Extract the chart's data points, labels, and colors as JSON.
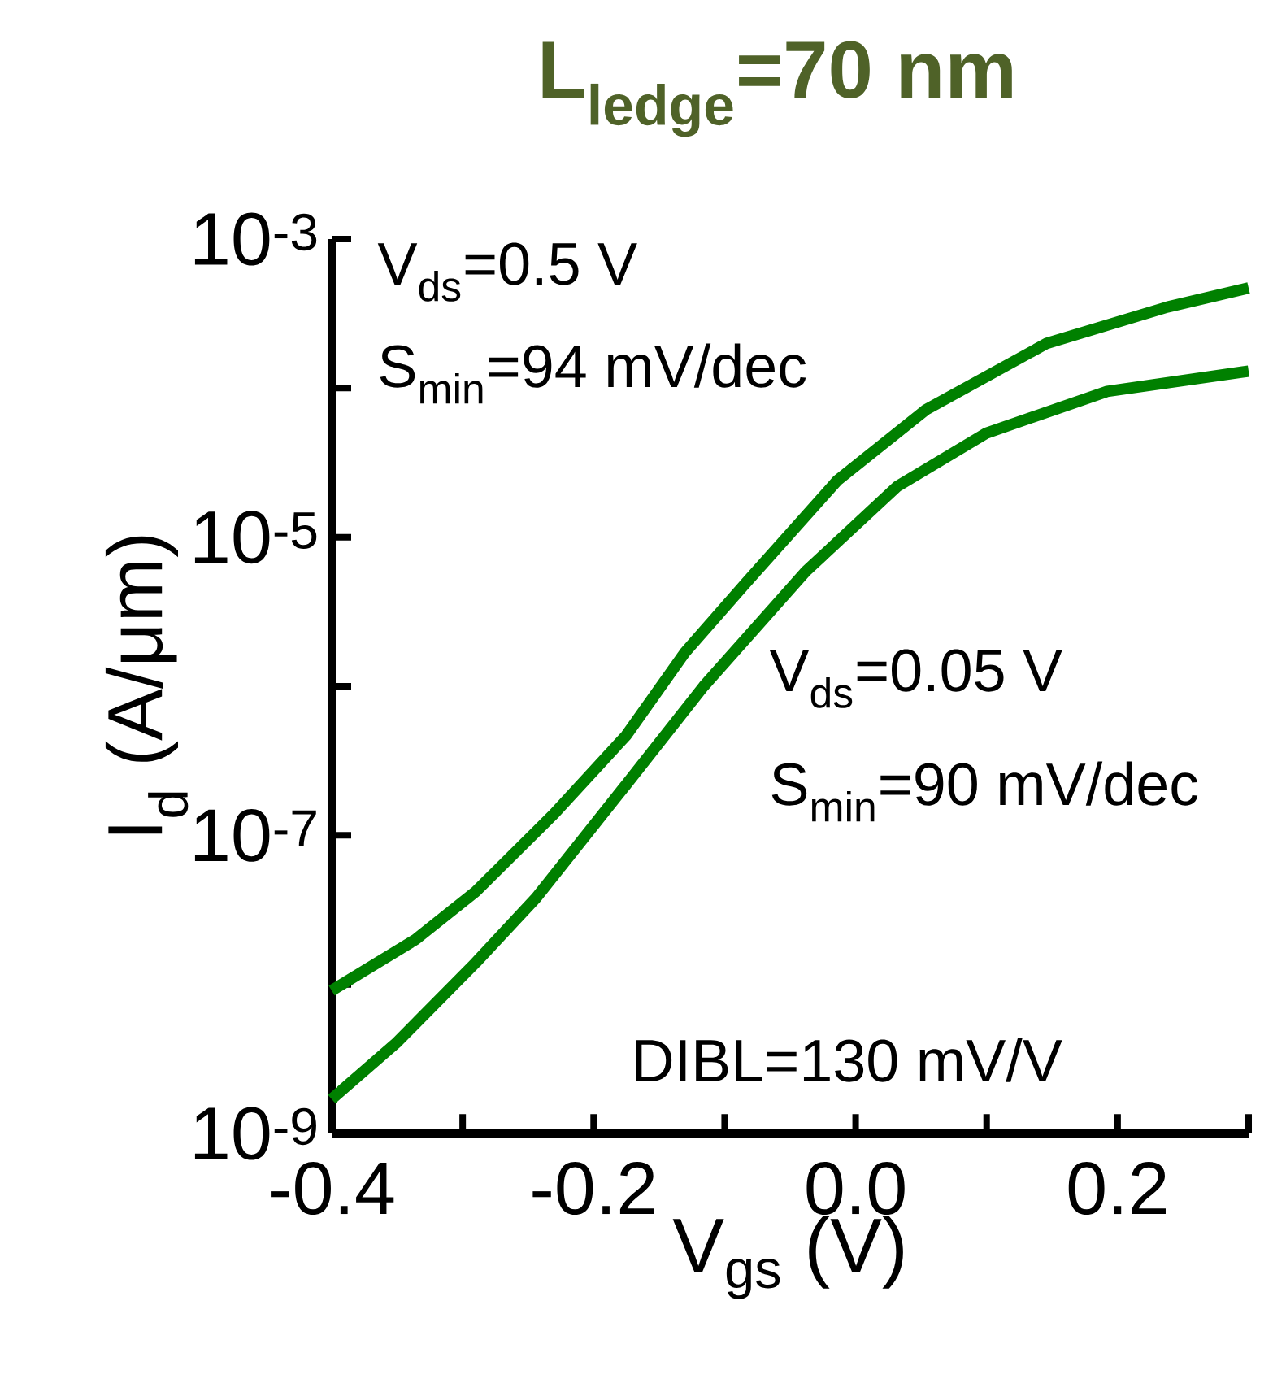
{
  "chart_data": {
    "type": "line",
    "title": "**L$_{ledge}$=70 nm**",
    "xlabel": "V$_{gs}$ (V)",
    "ylabel": "I$_{d}$ (A/μm)",
    "xlim": [
      -0.4,
      0.3
    ],
    "ylim": [
      1e-09,
      0.001
    ],
    "log": "y",
    "marker": "none",
    "line_style": "solid",
    "grid": false,
    "xticks": [
      -0.4,
      {
        "value": -0.3,
        "label": null
      },
      -0.2,
      {
        "value": -0.1,
        "label": null
      },
      {
        "value": 0,
        "label": "0.0"
      },
      {
        "value": 0.1,
        "label": null
      },
      0.2,
      {
        "value": 0.3,
        "label": null
      }
    ],
    "yticks": [
      {
        "value": 1e-09,
        "label": "10$^{-9}$"
      },
      {
        "value": 1e-08,
        "label": null
      },
      {
        "value": 1e-07,
        "label": "10$^{-7}$"
      },
      {
        "value": 1e-06,
        "label": null
      },
      {
        "value": 1e-05,
        "label": "10$^{-5}$"
      },
      {
        "value": 0.0001,
        "label": null
      },
      {
        "value": 0.001,
        "label": "10$^{-3}$"
      }
    ],
    "series": [
      {
        "color": "#008000",
        "x": [
          -0.4,
          -0.336,
          -0.29,
          -0.23,
          -0.175,
          -0.13,
          -0.084,
          -0.014,
          0.054,
          0.146,
          0.238,
          0.3
        ],
        "values": [
          9.1e-09,
          2e-08,
          4.2e-08,
          1.4e-07,
          4.7e-07,
          1.7e-06,
          4.9e-06,
          2.4e-05,
          7.2e-05,
          0.0002,
          0.00035,
          0.00047
        ]
      },
      {
        "color": "#008000",
        "x": [
          -0.4,
          -0.35,
          -0.29,
          -0.244,
          -0.175,
          -0.116,
          -0.038,
          0.032,
          0.1,
          0.192,
          0.3
        ],
        "values": [
          1.7e-09,
          4.1e-09,
          1.4e-08,
          3.8e-08,
          2.2e-07,
          1e-06,
          5.9e-06,
          2.2e-05,
          5e-05,
          9.5e-05,
          0.00013
        ]
      }
    ],
    "annotations": [
      "V$_{ds}$=0.5 V",
      "S$_{min}$=94 mV/dec",
      "V$_{ds}$=0.05 V",
      "S$_{min}$=90 mV/dec",
      "DIBL=130 mV/V"
    ]
  }
}
